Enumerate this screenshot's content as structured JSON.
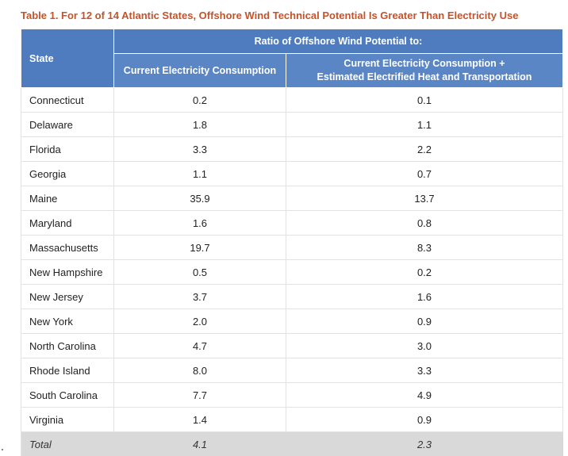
{
  "caption": "Table 1. For 12 of 14 Atlantic States, Offshore Wind Technical Potential Is Greater Than Electricity Use",
  "table": {
    "state_header": "State",
    "group_header": "Ratio of Offshore Wind Potential to:",
    "col1_header": "Current Electricity Consumption",
    "col2_header_line1": "Current Electricity Consumption +",
    "col2_header_line2": "Estimated Electrified Heat and Transportation",
    "rows": [
      {
        "state": "Connecticut",
        "consumption": "0.2",
        "with_heat_transport": "0.1"
      },
      {
        "state": "Delaware",
        "consumption": "1.8",
        "with_heat_transport": "1.1"
      },
      {
        "state": "Florida",
        "consumption": "3.3",
        "with_heat_transport": "2.2"
      },
      {
        "state": "Georgia",
        "consumption": "1.1",
        "with_heat_transport": "0.7"
      },
      {
        "state": "Maine",
        "consumption": "35.9",
        "with_heat_transport": "13.7"
      },
      {
        "state": "Maryland",
        "consumption": "1.6",
        "with_heat_transport": "0.8"
      },
      {
        "state": "Massachusetts",
        "consumption": "19.7",
        "with_heat_transport": "8.3"
      },
      {
        "state": "New Hampshire",
        "consumption": "0.5",
        "with_heat_transport": "0.2"
      },
      {
        "state": "New Jersey",
        "consumption": "3.7",
        "with_heat_transport": "1.6"
      },
      {
        "state": "New York",
        "consumption": "2.0",
        "with_heat_transport": "0.9"
      },
      {
        "state": "North Carolina",
        "consumption": "4.7",
        "with_heat_transport": "3.0"
      },
      {
        "state": "Rhode Island",
        "consumption": "8.0",
        "with_heat_transport": "3.3"
      },
      {
        "state": "South Carolina",
        "consumption": "7.7",
        "with_heat_transport": "4.9"
      },
      {
        "state": "Virginia",
        "consumption": "1.4",
        "with_heat_transport": "0.9"
      }
    ],
    "total": {
      "state": "Total",
      "consumption": "4.1",
      "with_heat_transport": "2.3"
    }
  },
  "colors": {
    "caption": "#c4532b",
    "header": "#5b86c5",
    "total_row": "#d9d9d9"
  }
}
